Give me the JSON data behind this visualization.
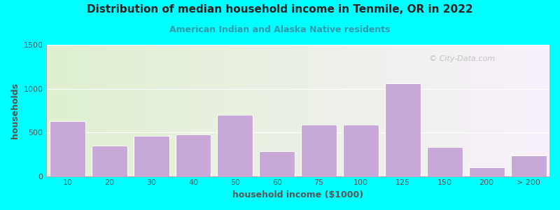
{
  "title": "Distribution of median household income in Tenmile, OR in 2022",
  "subtitle": "American Indian and Alaska Native residents",
  "xlabel": "household income ($1000)",
  "ylabel": "households",
  "bg_outer": "#00FFFF",
  "bg_inner_left": "#dff0d0",
  "bg_inner_right": "#f8f0fc",
  "bar_color": "#c8a8d8",
  "bar_edge_color": "#ffffff",
  "title_color": "#222222",
  "subtitle_color": "#3399aa",
  "axis_label_color": "#555555",
  "tick_label_color": "#555555",
  "bar_labels": [
    "10",
    "20",
    "30",
    "40",
    "50",
    "60",
    "75",
    "100",
    "125",
    "150",
    "200",
    "> 200"
  ],
  "bar_heights": [
    630,
    350,
    460,
    475,
    700,
    285,
    590,
    590,
    1060,
    330,
    100,
    240
  ],
  "ylim": [
    0,
    1500
  ],
  "yticks": [
    0,
    500,
    1000,
    1500
  ],
  "watermark": "© City-Data.com"
}
